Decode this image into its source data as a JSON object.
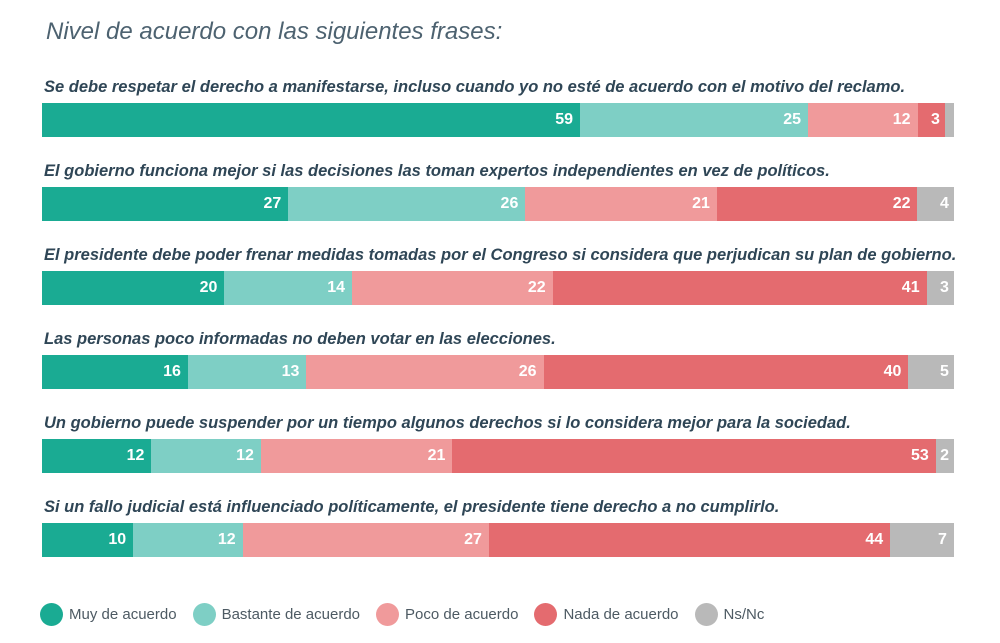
{
  "chart_data": {
    "type": "bar",
    "orientation": "horizontal-stacked-100",
    "title": "Nivel de acuerdo con las siguientes frases:",
    "categories": [
      "Se debe respetar el derecho a manifestarse, incluso cuando yo no esté de acuerdo con el motivo del reclamo.",
      "El gobierno funciona mejor si las decisiones las toman expertos independientes en vez de políticos.",
      "El presidente debe poder frenar medidas tomadas por el Congreso si considera que perjudican su plan de gobierno.",
      "Las personas poco informadas no deben votar en las elecciones.",
      "Un gobierno puede suspender por un tiempo algunos derechos si lo considera mejor para la sociedad.",
      "Si un fallo judicial está influenciado políticamente, el presidente tiene derecho a no cumplirlo."
    ],
    "series": [
      {
        "name": "Muy de acuerdo",
        "color": "#1aab93",
        "values": [
          59,
          27,
          20,
          16,
          12,
          10
        ],
        "labels": [
          "59",
          "27",
          "20",
          "16",
          "12",
          "10"
        ]
      },
      {
        "name": "Bastante de acuerdo",
        "color": "#7ecfc5",
        "values": [
          25,
          26,
          14,
          13,
          12,
          12
        ],
        "labels": [
          "25",
          "26",
          "14",
          "13",
          "12",
          "12"
        ]
      },
      {
        "name": "Poco de acuerdo",
        "color": "#f09a9b",
        "values": [
          12,
          21,
          22,
          26,
          21,
          27
        ],
        "labels": [
          "12",
          "21",
          "22",
          "26",
          "21",
          "27"
        ]
      },
      {
        "name": "Nada de acuerdo",
        "color": "#e46b6f",
        "values": [
          3,
          22,
          41,
          40,
          53,
          44
        ],
        "labels": [
          "3",
          "22",
          "41",
          "40",
          "53",
          "44"
        ]
      },
      {
        "name": "Ns/Nc",
        "color": "#b9b9b9",
        "values": [
          1,
          4,
          3,
          5,
          2,
          7
        ],
        "labels": [
          "",
          "4",
          "3",
          "5",
          "2",
          "7"
        ]
      }
    ],
    "legend": "bottom-left",
    "grid": false
  }
}
